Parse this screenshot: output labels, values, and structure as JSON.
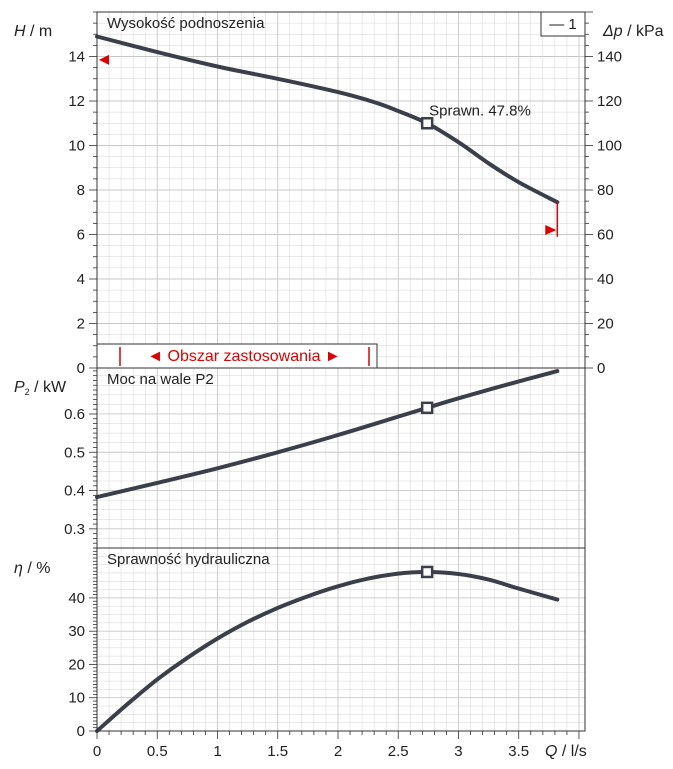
{
  "chart_data": [
    {
      "type": "line",
      "title": "Wysokość podnoszenia",
      "ylabel_var": "H",
      "ylabel_unit": " / m",
      "y2label_var": "Δp",
      "y2label_unit": " / kPa",
      "legend": "— 1",
      "ylim": [
        0,
        16
      ],
      "y2lim": [
        0,
        160
      ],
      "yticks": [
        0,
        2,
        4,
        6,
        8,
        10,
        12,
        14
      ],
      "y2ticks": [
        0,
        20,
        40,
        60,
        80,
        100,
        120,
        140
      ],
      "series": [
        {
          "x": [
            0,
            0.5,
            1,
            1.5,
            2,
            2.3,
            2.5,
            2.74,
            3,
            3.25,
            3.5,
            3.82
          ],
          "y": [
            14.9,
            14.2,
            13.55,
            13.0,
            12.4,
            11.95,
            11.55,
            11.0,
            10.15,
            9.2,
            8.35,
            7.45
          ]
        }
      ],
      "operating_point": {
        "x": 2.74,
        "y": 11.0,
        "label": "Sprawn.  47.8%"
      },
      "range_label": "◄ Obszar zastosowania ►",
      "range_markers": {
        "left_y": 13.85,
        "right_y": 6.2,
        "right_top": 7.45,
        "right_bottom": 5.9
      },
      "range_bounds": [
        0.2,
        2.3
      ]
    },
    {
      "type": "line",
      "title": "Moc na wale P2",
      "ylabel_var": "P",
      "ylabel_sub": "2",
      "ylabel_unit": " / kW",
      "ylim": [
        0.25,
        0.72
      ],
      "yticks": [
        0.3,
        0.4,
        0.5,
        0.6
      ],
      "series": [
        {
          "x": [
            0,
            0.5,
            1,
            1.5,
            2,
            2.5,
            2.74,
            3,
            3.5,
            3.82
          ],
          "y": [
            0.383,
            0.42,
            0.458,
            0.5,
            0.545,
            0.593,
            0.616,
            0.641,
            0.685,
            0.712
          ]
        }
      ],
      "operating_point": {
        "x": 2.74,
        "y": 0.616
      }
    },
    {
      "type": "line",
      "title": "Sprawność hydrauliczna",
      "ylabel_var": "η",
      "ylabel_unit": " / %",
      "ylim": [
        0,
        55
      ],
      "yticks": [
        0,
        10,
        20,
        30,
        40
      ],
      "series": [
        {
          "x": [
            0,
            0.25,
            0.5,
            0.75,
            1,
            1.25,
            1.5,
            1.75,
            2,
            2.25,
            2.5,
            2.74,
            3,
            3.25,
            3.5,
            3.82
          ],
          "y": [
            0,
            8,
            15.5,
            22,
            27.8,
            32.8,
            37,
            40.5,
            43.5,
            45.8,
            47.3,
            47.8,
            47.2,
            45.5,
            42.8,
            39.5
          ]
        }
      ],
      "operating_point": {
        "x": 2.74,
        "y": 47.8
      }
    }
  ],
  "x_axis": {
    "label_var": "Q",
    "label_unit": " / l/s",
    "xlim": [
      0,
      4.05
    ],
    "ticks": [
      0,
      0.5,
      1,
      1.5,
      2,
      2.5,
      3,
      3.5
    ],
    "tick_labels": [
      "0",
      "0.5",
      "1",
      "1.5",
      "2",
      "2.5",
      "3",
      "3.5"
    ]
  },
  "colors": {
    "curve": "#3a3f4a",
    "accent": "#e00000",
    "grid": "#c8c8c8",
    "frame": "#333333"
  }
}
